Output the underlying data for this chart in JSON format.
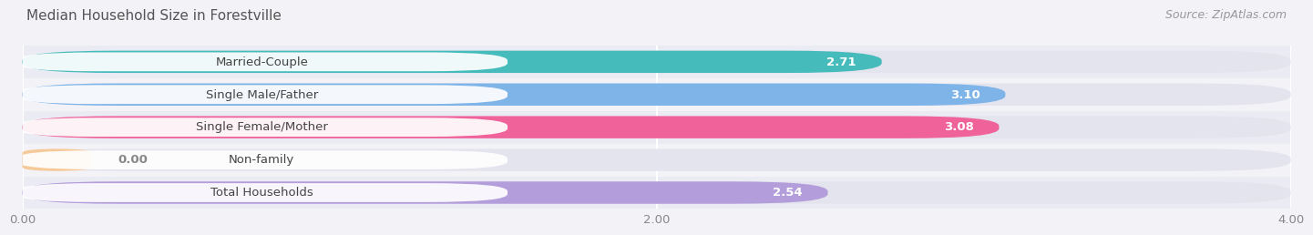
{
  "title": "Median Household Size in Forestville",
  "source": "Source: ZipAtlas.com",
  "categories": [
    "Married-Couple",
    "Single Male/Father",
    "Single Female/Mother",
    "Non-family",
    "Total Households"
  ],
  "values": [
    2.71,
    3.1,
    3.08,
    0.0,
    2.54
  ],
  "bar_colors": [
    "#45BBBB",
    "#7EB4E8",
    "#F0629A",
    "#F5C998",
    "#B39DDB"
  ],
  "xlim": [
    0,
    4.0
  ],
  "xticks": [
    0.0,
    2.0,
    4.0
  ],
  "xtick_labels": [
    "0.00",
    "2.00",
    "4.00"
  ],
  "background_color": "#f2f2f7",
  "bar_background": "#e4e4ee",
  "row_background_odd": "#ebebf4",
  "row_background_even": "#f2f2f7",
  "title_fontsize": 11,
  "label_fontsize": 9.5,
  "value_fontsize": 9.5,
  "source_fontsize": 9
}
